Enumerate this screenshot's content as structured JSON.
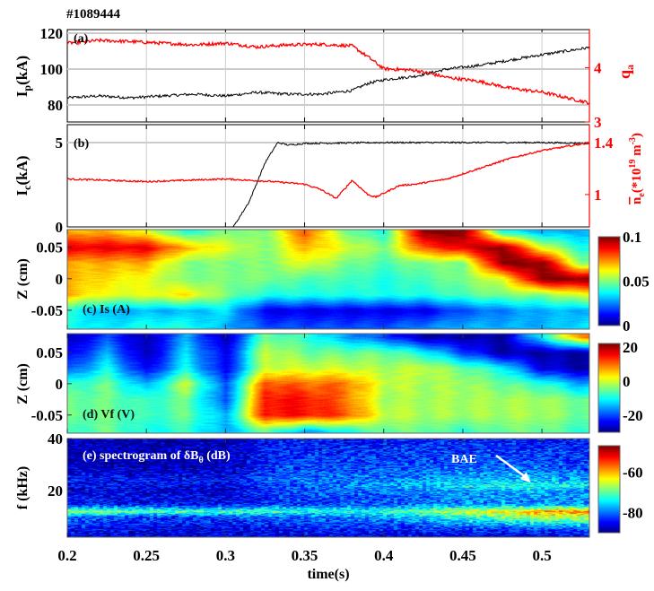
{
  "shot_label": "#1089444",
  "x_axis": {
    "label": "time(s)",
    "ticks": [
      "0.2",
      "0.25",
      "0.3",
      "0.35",
      "0.4",
      "0.45",
      "0.5"
    ],
    "range": [
      0.2,
      0.53
    ]
  },
  "chart_data": [
    {
      "type": "line",
      "panel_label": "(a)",
      "ylabel": {
        "main": "I",
        "sub": "p",
        "rest": "(kA)"
      },
      "ylabel_right": {
        "main": "q",
        "sub": "a"
      },
      "ylim": [
        70.5,
        122
      ],
      "ylim_right": [
        3,
        4.7
      ],
      "yticks": [
        "80",
        "100",
        "120"
      ],
      "yticks_right": [
        "3",
        "4"
      ],
      "grid": true,
      "series": [
        {
          "axis": "left",
          "color": "#000000",
          "x": [
            0.2,
            0.22,
            0.24,
            0.26,
            0.28,
            0.3,
            0.32,
            0.34,
            0.36,
            0.38,
            0.39,
            0.4,
            0.42,
            0.44,
            0.46,
            0.48,
            0.5,
            0.53
          ],
          "y": [
            84,
            85,
            84,
            85,
            86,
            85,
            87,
            86,
            86,
            88,
            92,
            94,
            96,
            100,
            102,
            105,
            108,
            112
          ]
        },
        {
          "axis": "right",
          "color": "#ff0000",
          "x": [
            0.2,
            0.22,
            0.24,
            0.26,
            0.28,
            0.3,
            0.32,
            0.34,
            0.36,
            0.38,
            0.39,
            0.4,
            0.42,
            0.44,
            0.46,
            0.48,
            0.5,
            0.53
          ],
          "y": [
            4.45,
            4.5,
            4.48,
            4.45,
            4.42,
            4.45,
            4.38,
            4.42,
            4.43,
            4.4,
            4.2,
            3.98,
            3.95,
            3.82,
            3.75,
            3.62,
            3.55,
            3.35
          ]
        }
      ]
    },
    {
      "type": "line",
      "panel_label": "(b)",
      "ylabel": {
        "main": "I",
        "sub": "c",
        "rest": "(kA)"
      },
      "ylabel_right": {
        "main": "n",
        "sub": "e",
        "rest": "(*10",
        "sup1": "19",
        "rest2": " m",
        "sup2": "-3",
        "close": ")"
      },
      "ylim": [
        0,
        6.06
      ],
      "ylim_right": [
        0.75,
        1.54
      ],
      "yticks": [
        "0",
        "5"
      ],
      "yticks_right": [
        "1",
        "1.4"
      ],
      "grid": true,
      "series": [
        {
          "axis": "left",
          "color": "#000000",
          "x": [
            0.2,
            0.3,
            0.305,
            0.315,
            0.325,
            0.333,
            0.34,
            0.35,
            0.4,
            0.45,
            0.5,
            0.53
          ],
          "y": [
            0,
            0,
            0,
            1.5,
            3.8,
            5,
            4.85,
            4.95,
            5,
            5,
            5,
            4.95
          ]
        },
        {
          "axis": "right",
          "color": "#ff0000",
          "x": [
            0.2,
            0.25,
            0.3,
            0.33,
            0.35,
            0.36,
            0.37,
            0.38,
            0.39,
            0.395,
            0.41,
            0.42,
            0.44,
            0.46,
            0.48,
            0.5,
            0.53
          ],
          "y": [
            1.12,
            1.1,
            1.12,
            1.1,
            1.08,
            1.04,
            0.97,
            1.11,
            1.0,
            0.98,
            1.07,
            1.08,
            1.12,
            1.2,
            1.28,
            1.34,
            1.4
          ]
        }
      ]
    },
    {
      "type": "heatmap",
      "panel_label": "(c) Is (A)",
      "ylabel": "Z (cm)",
      "yticks": [
        "0.05",
        "0",
        "-0.05"
      ],
      "ylim": [
        -0.08,
        0.078
      ],
      "colorbar": {
        "range": [
          0,
          0.1
        ],
        "ticks": [
          "0.1",
          "0.05",
          "0"
        ],
        "colormap": "jet"
      },
      "x": [
        0.2,
        0.225,
        0.25,
        0.275,
        0.3,
        0.325,
        0.35,
        0.375,
        0.4,
        0.425,
        0.45,
        0.475,
        0.5,
        0.525
      ],
      "y": [
        0.075,
        0.05,
        0.025,
        0,
        -0.025,
        -0.05,
        -0.075
      ],
      "z": [
        [
          0.07,
          0.07,
          0.06,
          0.04,
          0.05,
          0.05,
          0.08,
          0.05,
          0.04,
          0.1,
          0.1,
          0.04,
          0.03,
          0.03
        ],
        [
          0.09,
          0.09,
          0.09,
          0.07,
          0.06,
          0.05,
          0.07,
          0.06,
          0.05,
          0.08,
          0.09,
          0.1,
          0.06,
          0.04
        ],
        [
          0.07,
          0.07,
          0.07,
          0.05,
          0.05,
          0.05,
          0.06,
          0.05,
          0.045,
          0.05,
          0.05,
          0.1,
          0.1,
          0.05
        ],
        [
          0.07,
          0.065,
          0.06,
          0.05,
          0.05,
          0.05,
          0.045,
          0.045,
          0.04,
          0.045,
          0.05,
          0.06,
          0.1,
          0.1
        ],
        [
          0.07,
          0.06,
          0.06,
          0.065,
          0.05,
          0.04,
          0.04,
          0.04,
          0.04,
          0.04,
          0.045,
          0.05,
          0.05,
          0.06
        ],
        [
          0.04,
          0.03,
          0.03,
          0.03,
          0.035,
          0.01,
          0.01,
          0.01,
          0.01,
          0.01,
          0.02,
          0.025,
          0.03,
          0.03
        ],
        [
          0.04,
          0.035,
          0.04,
          0.04,
          0.03,
          0.02,
          0.02,
          0.02,
          0.02,
          0.025,
          0.03,
          0.03,
          0.03,
          0.035
        ]
      ]
    },
    {
      "type": "heatmap",
      "panel_label": "(d) Vf (V)",
      "ylabel": "Z (cm)",
      "yticks": [
        "0.05",
        "0",
        "-0.05"
      ],
      "ylim": [
        -0.079,
        0.08
      ],
      "colorbar": {
        "range": [
          -30,
          22
        ],
        "ticks": [
          "20",
          "0",
          "-20"
        ],
        "colormap": "jet"
      },
      "x": [
        0.2,
        0.225,
        0.25,
        0.275,
        0.3,
        0.325,
        0.35,
        0.375,
        0.4,
        0.425,
        0.45,
        0.475,
        0.5,
        0.525
      ],
      "y": [
        0.075,
        0.05,
        0.025,
        0,
        -0.025,
        -0.05,
        -0.075
      ],
      "z": [
        [
          -28,
          -20,
          -28,
          -15,
          -28,
          -5,
          -8,
          -15,
          -20,
          -28,
          -28,
          -28,
          -10,
          10
        ],
        [
          -25,
          -15,
          -28,
          -12,
          -25,
          0,
          -5,
          -5,
          -5,
          -10,
          -20,
          -28,
          -28,
          -28
        ],
        [
          -20,
          -10,
          -25,
          -10,
          -25,
          0,
          0,
          0,
          -2,
          0,
          -5,
          -10,
          -25,
          -28
        ],
        [
          -8,
          -5,
          -15,
          0,
          -20,
          12,
          10,
          10,
          0,
          -2,
          -2,
          -5,
          -8,
          -15
        ],
        [
          -5,
          -5,
          -8,
          -5,
          -20,
          15,
          15,
          10,
          -2,
          -2,
          -2,
          -2,
          -2,
          -5
        ],
        [
          -5,
          -5,
          -8,
          -5,
          -15,
          15,
          15,
          12,
          0,
          -2,
          -2,
          -2,
          -2,
          -5
        ],
        [
          -8,
          -5,
          -10,
          -8,
          -15,
          -5,
          -15,
          -10,
          -5,
          -5,
          -8,
          -5,
          -5,
          -8
        ]
      ]
    },
    {
      "type": "heatmap",
      "panel_label": "(e) spectrogram of δB",
      "panel_label_sub": "θ",
      "panel_label_rest": " (dB)",
      "ylabel": "f (kHz)",
      "yticks": [
        "40",
        "20"
      ],
      "ylim": [
        2,
        40
      ],
      "colorbar": {
        "range": [
          -90,
          -47
        ],
        "ticks": [
          "-60",
          "-80"
        ],
        "colormap": "jet"
      },
      "x": [
        0.2,
        0.25,
        0.3,
        0.335,
        0.35,
        0.4,
        0.45,
        0.5,
        0.53
      ],
      "y": [
        40,
        30,
        24,
        22,
        20,
        15,
        12,
        10,
        5,
        2
      ],
      "z": [
        [
          -88,
          -88,
          -88,
          -84,
          -84,
          -84,
          -84,
          -84,
          -84
        ],
        [
          -88,
          -88,
          -88,
          -82,
          -82,
          -82,
          -81,
          -81,
          -82
        ],
        [
          -84,
          -84,
          -85,
          -80,
          -80,
          -79,
          -77,
          -76,
          -78
        ],
        [
          -85,
          -85,
          -86,
          -81,
          -80,
          -78,
          -74,
          -72,
          -74
        ],
        [
          -86,
          -86,
          -87,
          -82,
          -81,
          -80,
          -78,
          -77,
          -79
        ],
        [
          -84,
          -85,
          -85,
          -83,
          -83,
          -81,
          -79,
          -78,
          -79
        ],
        [
          -68,
          -70,
          -71,
          -72,
          -73,
          -72,
          -66,
          -60,
          -58
        ],
        [
          -80,
          -82,
          -82,
          -80,
          -80,
          -78,
          -72,
          -66,
          -65
        ],
        [
          -84,
          -86,
          -86,
          -85,
          -84,
          -84,
          -83,
          -82,
          -83
        ],
        [
          -86,
          -86,
          -86,
          -86,
          -86,
          -86,
          -86,
          -86,
          -86
        ]
      ],
      "annotation": {
        "text": "BAE",
        "arrow_to": [
          0.493,
          23
        ]
      }
    }
  ]
}
